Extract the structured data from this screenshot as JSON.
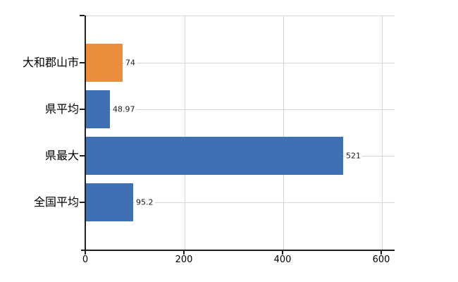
{
  "chart_data": {
    "type": "bar",
    "orientation": "horizontal",
    "title": "",
    "xlabel": "",
    "ylabel": "",
    "categories": [
      "大和郡山市",
      "県平均",
      "県最大",
      "全国平均"
    ],
    "values": [
      74,
      48.97,
      521,
      95.2
    ],
    "value_labels": [
      "74",
      "48.97",
      "521",
      "95.2"
    ],
    "x_ticks": [
      0,
      200,
      400,
      600
    ],
    "x_tick_labels": [
      "0",
      "200",
      "400",
      "600"
    ],
    "xlim": [
      0,
      626
    ],
    "grid": true,
    "legend": false,
    "colors": {
      "highlight_bar": "#EB8D3A",
      "default_bar": "#4070B4",
      "bars": [
        "#EB8D3A",
        "#4070B4",
        "#4070B4",
        "#4070B4"
      ],
      "gridline": "#D6D6D6",
      "axis": "#1F1F1F",
      "text": "#000000",
      "background": "#FFFFFF"
    }
  }
}
